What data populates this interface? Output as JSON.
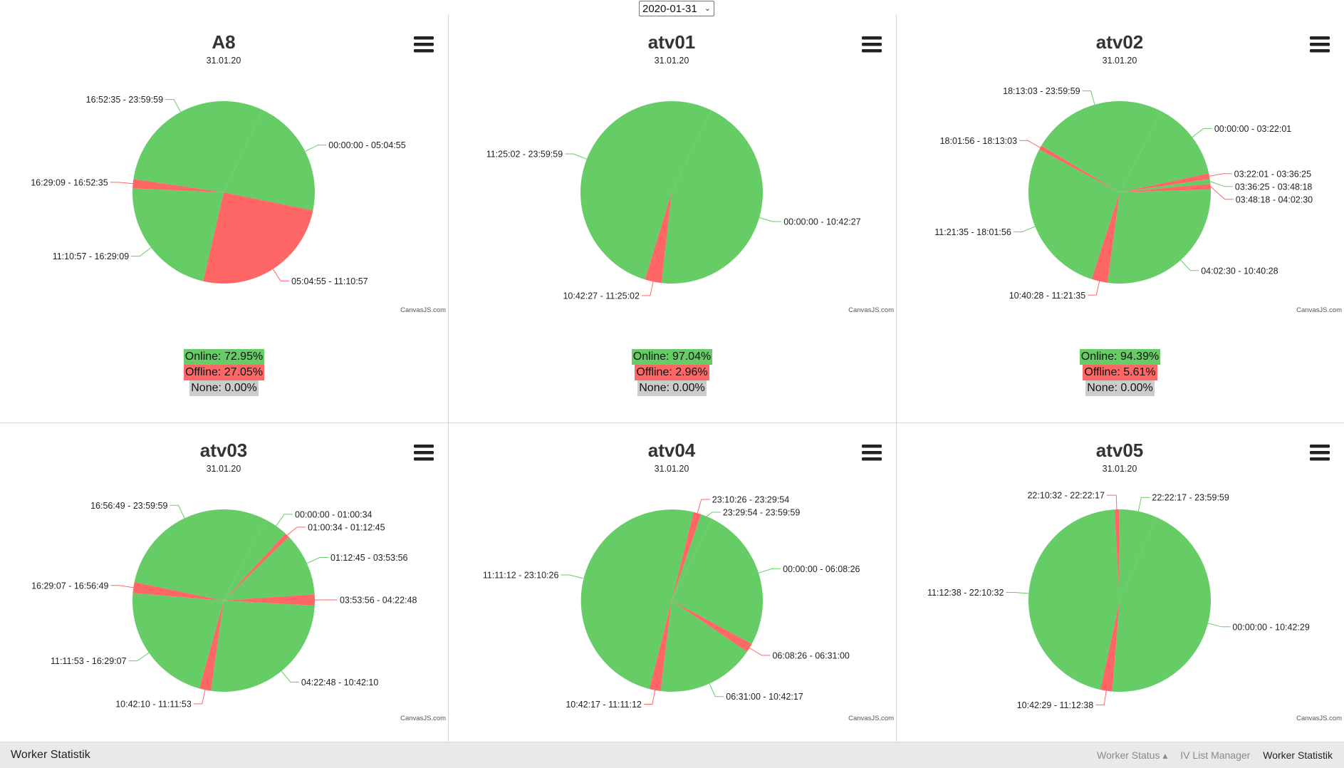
{
  "date_select": {
    "value": "2020-01-31"
  },
  "footer": {
    "brand": "Worker Statistik",
    "nav": [
      {
        "label": "Worker Status ▴",
        "active": false
      },
      {
        "label": "IV List Manager",
        "active": false
      },
      {
        "label": "Worker Statistik",
        "active": true
      }
    ]
  },
  "watermark": "CanvasJS.com",
  "colors": {
    "online": "#66cc66",
    "offline": "#ff6666",
    "none": "#cccccc"
  },
  "chart_data": [
    {
      "type": "pie",
      "title": "A8",
      "subtitle": "31.01.20",
      "slices": [
        {
          "label": "00:00:00 - 05:04:55",
          "value": 21.18,
          "status": "online"
        },
        {
          "label": "05:04:55 - 11:10:57",
          "value": 25.42,
          "status": "offline"
        },
        {
          "label": "11:10:57 - 16:29:09",
          "value": 22.1,
          "status": "online"
        },
        {
          "label": "16:29:09 - 16:52:35",
          "value": 1.63,
          "status": "offline"
        },
        {
          "label": "16:52:35 - 23:59:59",
          "value": 29.67,
          "status": "online"
        }
      ],
      "stats": {
        "online": "Online: 72.95%",
        "offline": "Offline: 27.05%",
        "none": "None: 0.00%"
      }
    },
    {
      "type": "pie",
      "title": "atv01",
      "subtitle": "31.01.20",
      "slices": [
        {
          "label": "00:00:00 - 10:42:27",
          "value": 44.61,
          "status": "online"
        },
        {
          "label": "10:42:27 - 11:25:02",
          "value": 2.96,
          "status": "offline"
        },
        {
          "label": "11:25:02 - 23:59:59",
          "value": 52.43,
          "status": "online"
        }
      ],
      "stats": {
        "online": "Online: 97.04%",
        "offline": "Offline: 2.96%",
        "none": "None: 0.00%"
      }
    },
    {
      "type": "pie",
      "title": "atv02",
      "subtitle": "31.01.20",
      "slices": [
        {
          "label": "00:00:00 - 03:22:01",
          "value": 14.03,
          "status": "online"
        },
        {
          "label": "03:22:01 - 03:36:25",
          "value": 1.0,
          "status": "offline"
        },
        {
          "label": "03:36:25 - 03:48:18",
          "value": 0.83,
          "status": "online"
        },
        {
          "label": "03:48:18 - 04:02:30",
          "value": 0.99,
          "status": "offline"
        },
        {
          "label": "04:02:30 - 10:40:28",
          "value": 27.64,
          "status": "online"
        },
        {
          "label": "10:40:28 - 11:21:35",
          "value": 2.86,
          "status": "offline"
        },
        {
          "label": "11:21:35 - 18:01:56",
          "value": 27.8,
          "status": "online"
        },
        {
          "label": "18:01:56 - 18:13:03",
          "value": 0.77,
          "status": "offline"
        },
        {
          "label": "18:13:03 - 23:59:59",
          "value": 24.09,
          "status": "online"
        }
      ],
      "stats": {
        "online": "Online: 94.39%",
        "offline": "Offline: 5.61%",
        "none": "None: 0.00%"
      }
    },
    {
      "type": "pie",
      "title": "atv03",
      "subtitle": "31.01.20",
      "slices": [
        {
          "label": "00:00:00 - 01:00:34",
          "value": 4.21,
          "status": "online"
        },
        {
          "label": "01:00:34 - 01:12:45",
          "value": 0.85,
          "status": "offline"
        },
        {
          "label": "01:12:45 - 03:53:56",
          "value": 11.19,
          "status": "online"
        },
        {
          "label": "03:53:56 - 04:22:48",
          "value": 2.0,
          "status": "offline"
        },
        {
          "label": "04:22:48 - 10:42:10",
          "value": 26.35,
          "status": "online"
        },
        {
          "label": "10:42:10 - 11:11:53",
          "value": 2.06,
          "status": "offline"
        },
        {
          "label": "11:11:53 - 16:29:07",
          "value": 22.03,
          "status": "online"
        },
        {
          "label": "16:29:07 - 16:56:49",
          "value": 1.92,
          "status": "offline"
        },
        {
          "label": "16:56:49 - 23:59:59",
          "value": 29.39,
          "status": "online"
        }
      ]
    },
    {
      "type": "pie",
      "title": "atv04",
      "subtitle": "31.01.20",
      "slices": [
        {
          "label": "00:00:00 - 06:08:26",
          "value": 25.59,
          "status": "online"
        },
        {
          "label": "06:08:26 - 06:31:00",
          "value": 1.57,
          "status": "offline"
        },
        {
          "label": "06:31:00 - 10:42:17",
          "value": 17.45,
          "status": "online"
        },
        {
          "label": "10:42:17 - 11:11:12",
          "value": 2.01,
          "status": "offline"
        },
        {
          "label": "11:11:12 - 23:10:26",
          "value": 49.95,
          "status": "online"
        },
        {
          "label": "23:10:26 - 23:29:54",
          "value": 1.35,
          "status": "offline"
        },
        {
          "label": "23:29:54 - 23:59:59",
          "value": 2.09,
          "status": "online"
        }
      ]
    },
    {
      "type": "pie",
      "title": "atv05",
      "subtitle": "31.01.20",
      "slices": [
        {
          "label": "00:00:00 - 10:42:29",
          "value": 44.62,
          "status": "online"
        },
        {
          "label": "10:42:29 - 11:12:38",
          "value": 2.09,
          "status": "offline"
        },
        {
          "label": "11:12:38 - 22:10:32",
          "value": 45.69,
          "status": "online"
        },
        {
          "label": "22:10:32 - 22:22:17",
          "value": 0.82,
          "status": "offline"
        },
        {
          "label": "22:22:17 - 23:59:59",
          "value": 6.78,
          "status": "online"
        }
      ]
    }
  ]
}
